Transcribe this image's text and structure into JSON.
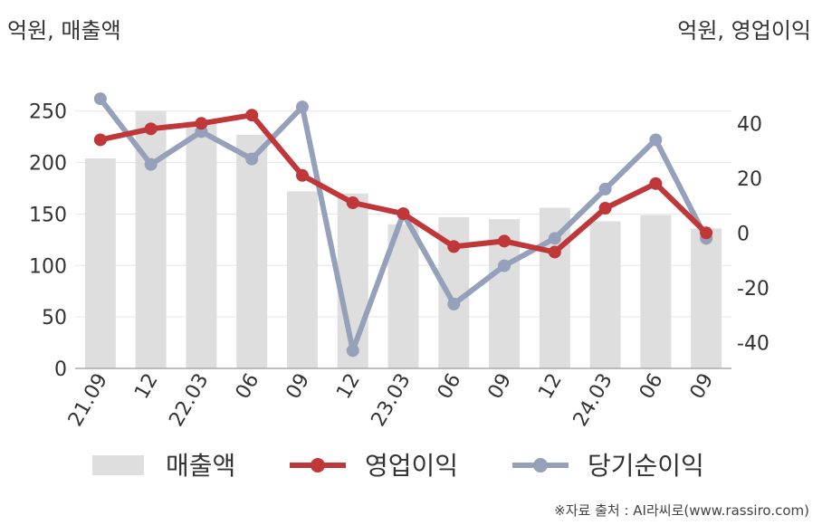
{
  "left_axis_unit": "억원, 매출액",
  "right_axis_unit": "억원, 영업이익",
  "source": "※자료 출처 : AI라씨로(www.rassiro.com)",
  "colors": {
    "revenue": "#dedede",
    "operating_profit": "#c0373a",
    "net_income": "#95a0ba",
    "grid": "#e6e6e6",
    "axis": "#aaaaaa",
    "text": "#333333"
  },
  "chart_data": {
    "type": "bar",
    "categories": [
      "21.09",
      "12",
      "22.03",
      "06",
      "09",
      "12",
      "23.03",
      "06",
      "09",
      "12",
      "24.03",
      "06",
      "09"
    ],
    "series": [
      {
        "name": "매출액",
        "type": "bar",
        "axis": "left",
        "values": [
          204,
          250,
          240,
          227,
          172,
          170,
          140,
          147,
          145,
          156,
          143,
          149,
          136
        ]
      },
      {
        "name": "영업이익",
        "type": "line",
        "axis": "right",
        "values": [
          34,
          38,
          40,
          43,
          21,
          11,
          7,
          -5,
          -3,
          -7,
          9,
          18,
          0
        ]
      },
      {
        "name": "당기순이익",
        "type": "line",
        "axis": "right",
        "values": [
          49,
          25,
          37,
          27,
          46,
          -43,
          7,
          -26,
          -12,
          -2,
          16,
          34,
          -2
        ]
      }
    ],
    "y_left": {
      "ticks": [
        "0",
        "50",
        "100",
        "150",
        "200",
        "250"
      ],
      "ylim": [
        0,
        270
      ]
    },
    "y_right": {
      "ticks": [
        "-40",
        "-20",
        "0",
        "20",
        "40"
      ],
      "ylim": [
        -49.5,
        52
      ]
    },
    "legend_position": "bottom",
    "grid": true
  }
}
